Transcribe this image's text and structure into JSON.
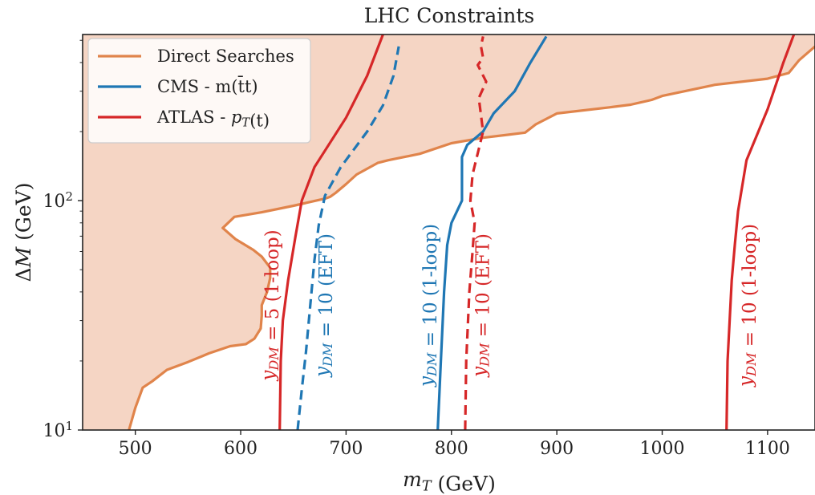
{
  "chart_data": {
    "type": "line",
    "title": "LHC Constraints",
    "xlabel": "m_T (GeV)",
    "ylabel": "ΔM (GeV)",
    "xlim": [
      450,
      1145
    ],
    "ylim": [
      10,
      530
    ],
    "yscale": "log",
    "x_ticks": [
      500,
      600,
      700,
      800,
      900,
      1000,
      1100
    ],
    "x_tick_labels": [
      "500",
      "600",
      "700",
      "800",
      "900",
      "1000",
      "1100"
    ],
    "y_ticks": [
      10,
      100
    ],
    "y_tick_labels": [
      "10¹",
      "10²"
    ],
    "legend_position": "top-left",
    "grid": false,
    "colors": {
      "direct": "#e0844b",
      "direct_fill": "#f5d5c4",
      "cms": "#1f77b4",
      "atlas": "#d62728"
    },
    "legend": [
      {
        "label": "Direct Searches",
        "color": "#e0844b"
      },
      {
        "label": "CMS - m(t̄t)",
        "color": "#1f77b4"
      },
      {
        "label": "ATLAS - p_T(t)",
        "color": "#d62728"
      }
    ],
    "series": [
      {
        "name": "Direct Searches",
        "color": "#e0844b",
        "dash": false,
        "filled": true,
        "points": [
          [
            494,
            10
          ],
          [
            500,
            12.5
          ],
          [
            507,
            15.3
          ],
          [
            516,
            16.3
          ],
          [
            530,
            18.3
          ],
          [
            550,
            19.8
          ],
          [
            570,
            21.6
          ],
          [
            590,
            23.2
          ],
          [
            605,
            23.7
          ],
          [
            613,
            25.0
          ],
          [
            619,
            27.7
          ],
          [
            620,
            31.5
          ],
          [
            620,
            35.0
          ],
          [
            625,
            40.0
          ],
          [
            628,
            46.0
          ],
          [
            628,
            51.0
          ],
          [
            620,
            57.0
          ],
          [
            612,
            61.0
          ],
          [
            595,
            68.0
          ],
          [
            583,
            76.0
          ],
          [
            594,
            85.0
          ],
          [
            620,
            89.0
          ],
          [
            650,
            95.0
          ],
          [
            680,
            102.0
          ],
          [
            685,
            104.0
          ],
          [
            690,
            108.0
          ],
          [
            700,
            118.0
          ],
          [
            710,
            130.0
          ],
          [
            730,
            146.0
          ],
          [
            740,
            150.0
          ],
          [
            770,
            160.0
          ],
          [
            800,
            178.0
          ],
          [
            830,
            188.0
          ],
          [
            870,
            198.0
          ],
          [
            880,
            215.0
          ],
          [
            900,
            240.0
          ],
          [
            950,
            255.0
          ],
          [
            970,
            262.0
          ],
          [
            990,
            275.0
          ],
          [
            1000,
            286.0
          ],
          [
            1050,
            320.0
          ],
          [
            1100,
            340.0
          ],
          [
            1120,
            360.0
          ],
          [
            1130,
            410.0
          ],
          [
            1145,
            470.0
          ]
        ]
      },
      {
        "name": "y_DM = 10 (EFT)",
        "color": "#1f77b4",
        "dash": true,
        "points": [
          [
            654,
            10
          ],
          [
            658,
            15
          ],
          [
            662,
            22
          ],
          [
            666,
            35
          ],
          [
            670,
            55
          ],
          [
            674,
            78
          ],
          [
            680,
            105
          ],
          [
            695,
            140
          ],
          [
            720,
            200
          ],
          [
            735,
            260
          ],
          [
            745,
            350
          ],
          [
            750,
            470
          ]
        ]
      },
      {
        "name": "y_DM = 10 (1-loop)",
        "color": "#1f77b4",
        "dash": false,
        "points": [
          [
            787,
            10
          ],
          [
            790,
            20
          ],
          [
            793,
            40
          ],
          [
            796,
            64
          ],
          [
            800,
            80
          ],
          [
            810,
            100
          ],
          [
            810,
            135
          ],
          [
            810,
            155
          ],
          [
            815,
            175
          ],
          [
            830,
            200
          ],
          [
            840,
            240
          ],
          [
            860,
            300
          ],
          [
            875,
            400
          ],
          [
            890,
            520
          ]
        ]
      },
      {
        "name": "y_DM = 5 (1-loop)",
        "color": "#d62728",
        "dash": false,
        "points": [
          [
            637,
            10
          ],
          [
            638,
            20
          ],
          [
            640,
            30
          ],
          [
            645,
            45
          ],
          [
            652,
            70
          ],
          [
            658,
            100
          ],
          [
            670,
            140
          ],
          [
            700,
            230
          ],
          [
            720,
            350
          ],
          [
            735,
            530
          ]
        ]
      },
      {
        "name": "y_DM = 10 (EFT)",
        "color": "#d62728",
        "dash": true,
        "points": [
          [
            813,
            10
          ],
          [
            814,
            20
          ],
          [
            817,
            40
          ],
          [
            820,
            60
          ],
          [
            822,
            80
          ],
          [
            818,
            100
          ],
          [
            820,
            130
          ],
          [
            830,
            200
          ],
          [
            826,
            280
          ],
          [
            833,
            330
          ],
          [
            825,
            390
          ],
          [
            830,
            420
          ],
          [
            828,
            470
          ],
          [
            830,
            520
          ]
        ]
      },
      {
        "name": "y_DM = 10 (1-loop)",
        "color": "#d62728",
        "dash": false,
        "points": [
          [
            1061,
            10
          ],
          [
            1062,
            20
          ],
          [
            1064,
            30
          ],
          [
            1066,
            45
          ],
          [
            1069,
            65
          ],
          [
            1072,
            90
          ],
          [
            1080,
            150
          ],
          [
            1100,
            250
          ],
          [
            1115,
            400
          ],
          [
            1125,
            530
          ]
        ]
      }
    ],
    "annotations": [
      {
        "text": "y_DM = 5 (1-loop)",
        "color": "#d62728",
        "x": 632,
        "y": 35
      },
      {
        "text": "y_DM = 10 (EFT)",
        "color": "#1f77b4",
        "x": 683,
        "y": 35
      },
      {
        "text": "y_DM = 10 (1-loop)",
        "color": "#1f77b4",
        "x": 782,
        "y": 35
      },
      {
        "text": "y_DM = 10 (EFT)",
        "color": "#d62728",
        "x": 832,
        "y": 35
      },
      {
        "text": "y_DM = 10 (1-loop)",
        "color": "#d62728",
        "x": 1085,
        "y": 35
      }
    ]
  }
}
